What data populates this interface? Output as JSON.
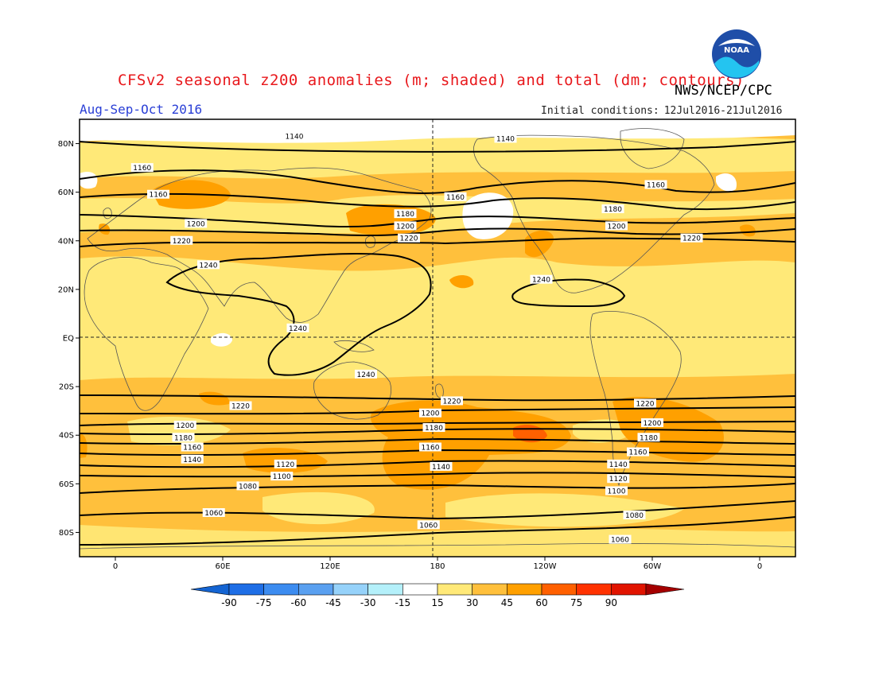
{
  "header": {
    "title": "CFSv2 seasonal z200 anomalies (m; shaded) and total (dm; contours)",
    "agency": "NWS/NCEP/CPC",
    "period": "Aug-Sep-Oct 2016",
    "initial_label": "Initial conditions:",
    "initial_value": "12Jul2016-21Jul2016",
    "logo_text": "NOAA"
  },
  "axes": {
    "lat_labels": [
      "80N",
      "60N",
      "40N",
      "20N",
      "EQ",
      "20S",
      "40S",
      "60S",
      "80S"
    ],
    "lat_values": [
      80,
      60,
      40,
      20,
      0,
      -20,
      -40,
      -60,
      -80
    ],
    "lon_labels": [
      "0",
      "60E",
      "120E",
      "180",
      "120W",
      "60W",
      "0"
    ],
    "lon_values": [
      0,
      60,
      120,
      180,
      240,
      300,
      360
    ]
  },
  "colorbar": {
    "ticks": [
      "-90",
      "-75",
      "-60",
      "-45",
      "-30",
      "-15",
      "15",
      "30",
      "45",
      "60",
      "75",
      "90"
    ],
    "colors": [
      "#1464d2",
      "#1e6ee6",
      "#3c8cf0",
      "#5aa0f0",
      "#96d2fa",
      "#b4f0fa",
      "#ffffff",
      "#ffe978",
      "#ffc03c",
      "#ffa000",
      "#ff6000",
      "#ff3200",
      "#e11400",
      "#a50000"
    ]
  },
  "contour_labels": [
    {
      "lon": 100,
      "lat": 83,
      "text": "1140"
    },
    {
      "lon": 218,
      "lat": 82,
      "text": "1140"
    },
    {
      "lon": 15,
      "lat": 70,
      "text": "1160"
    },
    {
      "lon": 24,
      "lat": 59,
      "text": "1160"
    },
    {
      "lon": 190,
      "lat": 58,
      "text": "1160"
    },
    {
      "lon": 302,
      "lat": 63,
      "text": "1160"
    },
    {
      "lon": 162,
      "lat": 51,
      "text": "1180"
    },
    {
      "lon": 278,
      "lat": 53,
      "text": "1180"
    },
    {
      "lon": 45,
      "lat": 47,
      "text": "1200"
    },
    {
      "lon": 162,
      "lat": 46,
      "text": "1200"
    },
    {
      "lon": 280,
      "lat": 46,
      "text": "1200"
    },
    {
      "lon": 37,
      "lat": 40,
      "text": "1220"
    },
    {
      "lon": 164,
      "lat": 41,
      "text": "1220"
    },
    {
      "lon": 322,
      "lat": 41,
      "text": "1220"
    },
    {
      "lon": 52,
      "lat": 30,
      "text": "1240"
    },
    {
      "lon": 238,
      "lat": 24,
      "text": "1240"
    },
    {
      "lon": 102,
      "lat": 4,
      "text": "1240"
    },
    {
      "lon": 140,
      "lat": -15,
      "text": "1240"
    },
    {
      "lon": 70,
      "lat": -28,
      "text": "1220"
    },
    {
      "lon": 188,
      "lat": -26,
      "text": "1220"
    },
    {
      "lon": 296,
      "lat": -27,
      "text": "1220"
    },
    {
      "lon": 176,
      "lat": -31,
      "text": "1200"
    },
    {
      "lon": 39,
      "lat": -36,
      "text": "1200"
    },
    {
      "lon": 300,
      "lat": -35,
      "text": "1200"
    },
    {
      "lon": 178,
      "lat": -37,
      "text": "1180"
    },
    {
      "lon": 38,
      "lat": -41,
      "text": "1180"
    },
    {
      "lon": 298,
      "lat": -41,
      "text": "1180"
    },
    {
      "lon": 43,
      "lat": -45,
      "text": "1160"
    },
    {
      "lon": 176,
      "lat": -45,
      "text": "1160"
    },
    {
      "lon": 292,
      "lat": -47,
      "text": "1160"
    },
    {
      "lon": 43,
      "lat": -50,
      "text": "1140"
    },
    {
      "lon": 182,
      "lat": -53,
      "text": "1140"
    },
    {
      "lon": 281,
      "lat": -52,
      "text": "1140"
    },
    {
      "lon": 95,
      "lat": -52,
      "text": "1120"
    },
    {
      "lon": 281,
      "lat": -58,
      "text": "1120"
    },
    {
      "lon": 93,
      "lat": -57,
      "text": "1100"
    },
    {
      "lon": 280,
      "lat": -63,
      "text": "1100"
    },
    {
      "lon": 74,
      "lat": -61,
      "text": "1080"
    },
    {
      "lon": 290,
      "lat": -73,
      "text": "1080"
    },
    {
      "lon": 55,
      "lat": -72,
      "text": "1060"
    },
    {
      "lon": 175,
      "lat": -77,
      "text": "1060"
    },
    {
      "lon": 282,
      "lat": -83,
      "text": "1060"
    }
  ]
}
